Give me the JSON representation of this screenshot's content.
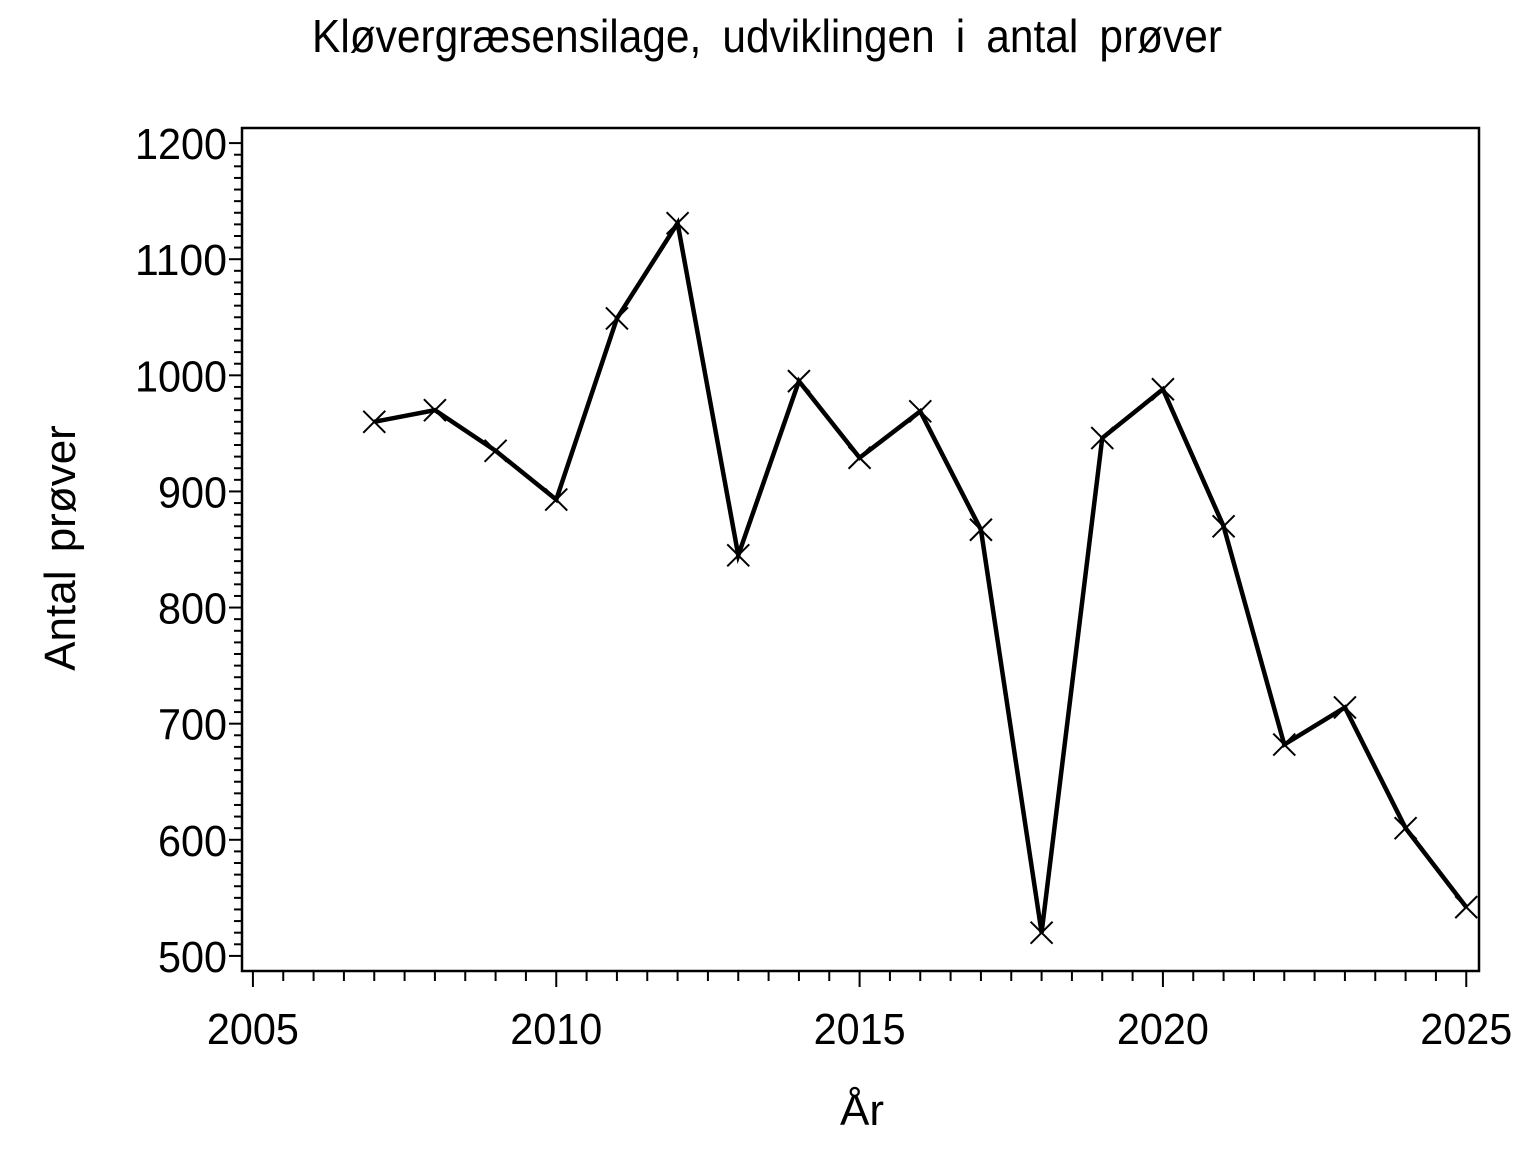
{
  "chart_data": {
    "type": "line",
    "title": "Kløvergræsensilage, udviklingen i antal prøver",
    "xlabel": "År",
    "ylabel": "Antal prøver",
    "series_name": "Antal prøver",
    "x": [
      2007,
      2008,
      2009,
      2010,
      2011,
      2012,
      2013,
      2014,
      2015,
      2016,
      2017,
      2018,
      2019,
      2020,
      2021,
      2022,
      2023,
      2024,
      2025
    ],
    "values": [
      960,
      970,
      935,
      893,
      1049,
      1131,
      845,
      995,
      929,
      969,
      867,
      520,
      946,
      988,
      870,
      682,
      714,
      610,
      542
    ],
    "marker": "x",
    "marker_size": 11,
    "line_color": "#000000",
    "frame_color": "#000000",
    "background": "#ffffff",
    "xlim": [
      2004.82,
      2025.21
    ],
    "ylim": [
      487,
      1213
    ],
    "x_major_ticks": [
      2005,
      2010,
      2015,
      2020,
      2025
    ],
    "x_minor_step": 0.5,
    "y_major_ticks": [
      500,
      600,
      700,
      800,
      900,
      1000,
      1100,
      1200
    ],
    "y_minor_step": 10,
    "grid": false,
    "legend": false
  }
}
